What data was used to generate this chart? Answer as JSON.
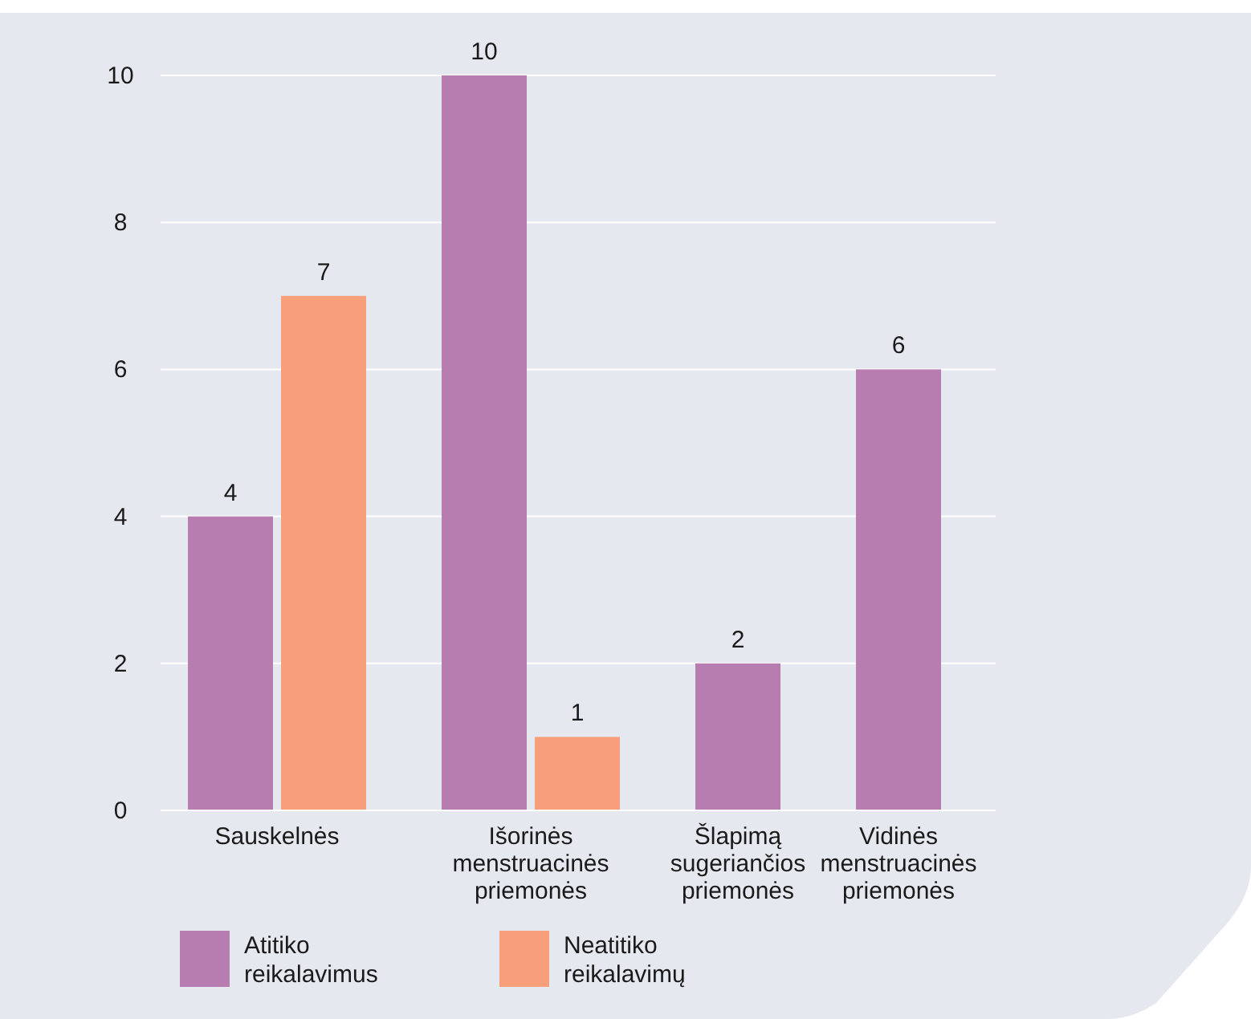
{
  "chart_data": {
    "type": "bar",
    "categories": [
      "Sauskelnės",
      "Išorinės menstruacinės priemonės",
      "Šlapimą sugeriančios priemonės",
      "Vidinės menstruacinės priemonės"
    ],
    "series": [
      {
        "name": "Atitiko reikalavimus",
        "color": "#b77db0",
        "values": [
          4,
          10,
          2,
          6
        ]
      },
      {
        "name": "Neatitiko reikalavimų",
        "color": "#f79e7a",
        "values": [
          7,
          1,
          null,
          null
        ]
      }
    ],
    "ylim": [
      0,
      10
    ],
    "yticks": [
      0,
      2,
      4,
      6,
      8,
      10
    ],
    "grid": "y",
    "legend": "bottom",
    "data_labels": true
  }
}
